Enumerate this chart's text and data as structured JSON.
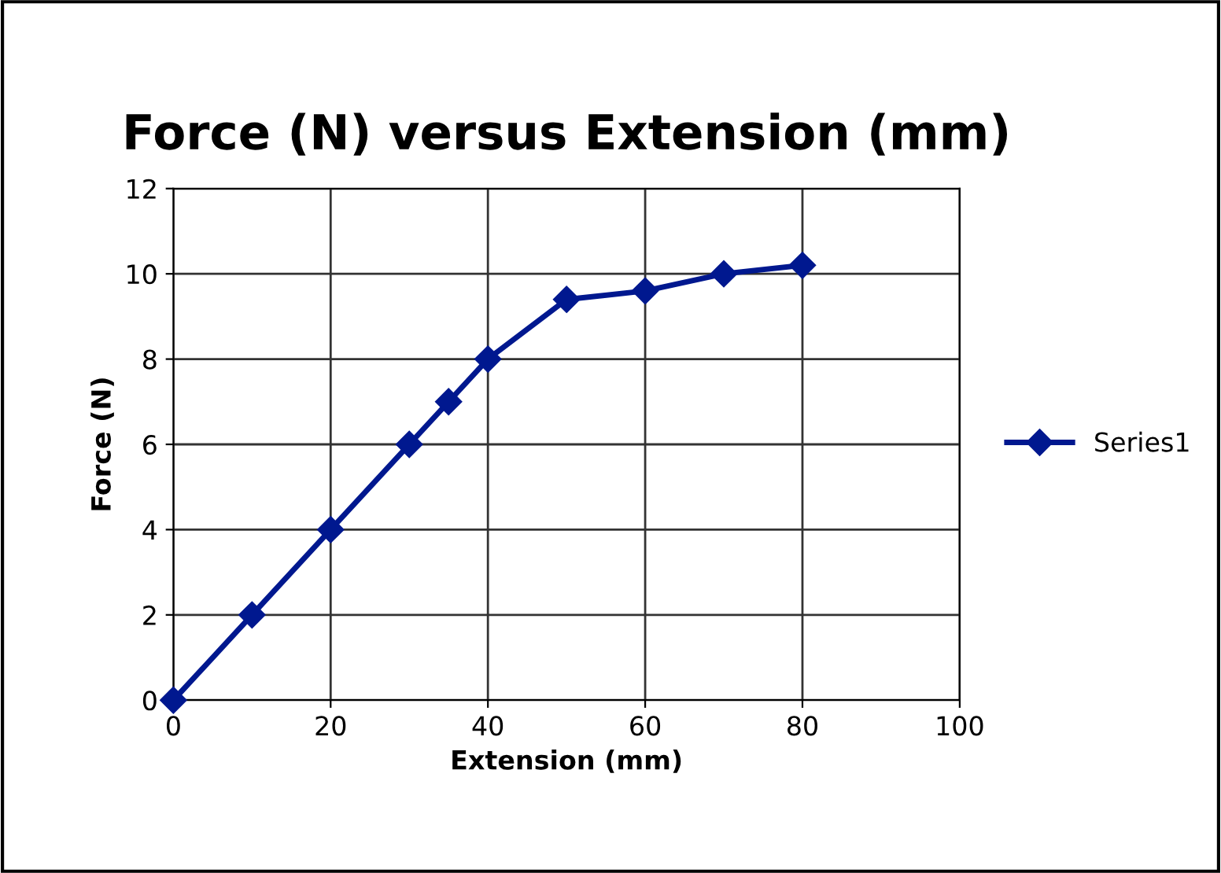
{
  "chart_data": {
    "type": "line",
    "title": "Force (N) versus Extension (mm)",
    "xlabel": "Extension (mm)",
    "ylabel": "Force (N)",
    "x": [
      0,
      10,
      20,
      30,
      35,
      40,
      50,
      60,
      70,
      80
    ],
    "series": [
      {
        "name": "Series1",
        "color": "#00188f",
        "values": [
          0,
          2,
          4,
          6,
          7,
          8,
          9.4,
          9.6,
          10,
          10.2
        ]
      }
    ],
    "xlim": [
      0,
      100
    ],
    "xticks": [
      0,
      20,
      40,
      60,
      80,
      100
    ],
    "ylim": [
      0,
      12
    ],
    "yticks": [
      0,
      2,
      4,
      6,
      8,
      10,
      12
    ],
    "grid": true,
    "legend": "right",
    "marker": "diamond",
    "line_style": "solid"
  }
}
